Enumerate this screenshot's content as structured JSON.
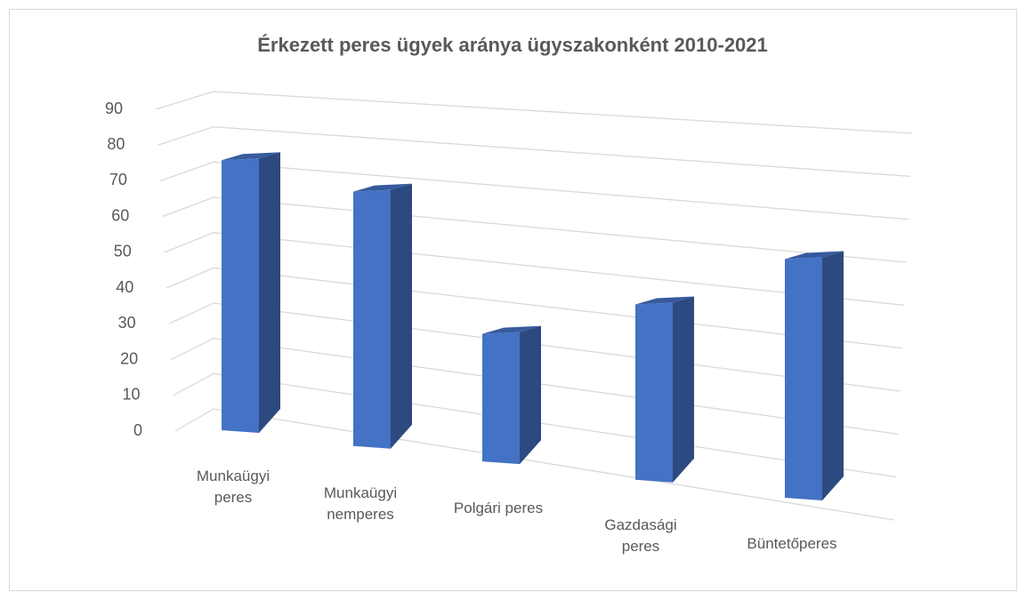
{
  "chart_data": {
    "type": "bar3d",
    "title": "Érkezett peres ügyek aránya ügyszakonként 2010-2021",
    "categories": [
      "Munkaügyi peres",
      "Munkaügyi nemperes",
      "Polgári peres",
      "Gazdasági peres",
      "Büntetőperes"
    ],
    "values": [
      82,
      74,
      36,
      47,
      61
    ],
    "color": "#4472c4",
    "ylim": [
      0,
      90
    ],
    "yticks": [
      0,
      10,
      20,
      30,
      40,
      50,
      60,
      70,
      80,
      90
    ],
    "grid": true
  }
}
